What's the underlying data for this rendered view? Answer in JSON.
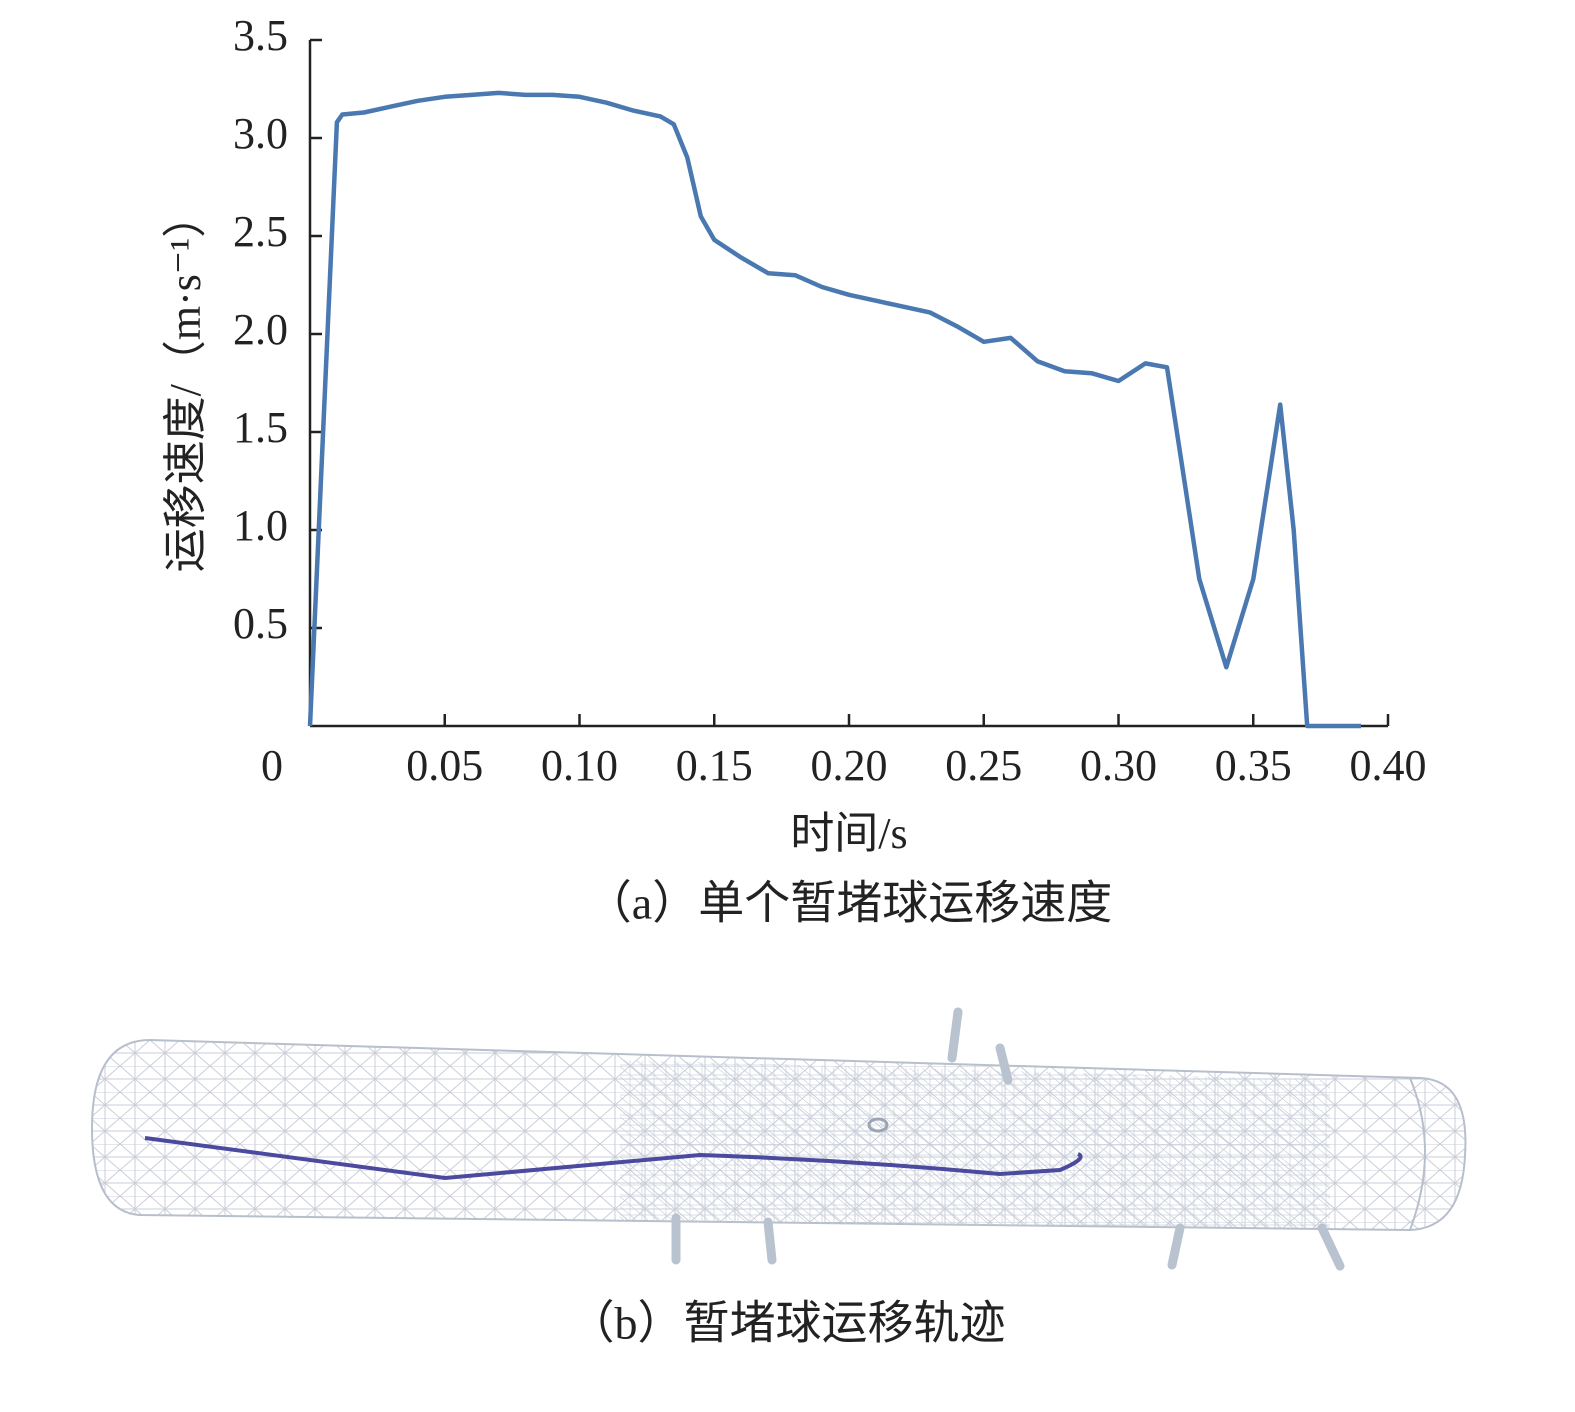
{
  "chart_data": {
    "type": "line",
    "y_label": "运移速度/（m·s⁻¹）",
    "x_label": "时间/s",
    "x": [
      0,
      0.01,
      0.012,
      0.02,
      0.03,
      0.04,
      0.05,
      0.06,
      0.07,
      0.08,
      0.09,
      0.1,
      0.11,
      0.12,
      0.13,
      0.135,
      0.14,
      0.145,
      0.15,
      0.16,
      0.17,
      0.18,
      0.19,
      0.2,
      0.21,
      0.22,
      0.23,
      0.24,
      0.25,
      0.26,
      0.27,
      0.28,
      0.29,
      0.3,
      0.31,
      0.318,
      0.325,
      0.33,
      0.34,
      0.35,
      0.36,
      0.365,
      0.37,
      0.38,
      0.39
    ],
    "values": [
      0,
      3.08,
      3.12,
      3.13,
      3.16,
      3.19,
      3.21,
      3.22,
      3.23,
      3.22,
      3.22,
      3.21,
      3.18,
      3.14,
      3.11,
      3.07,
      2.9,
      2.6,
      2.48,
      2.39,
      2.31,
      2.3,
      2.24,
      2.2,
      2.17,
      2.14,
      2.11,
      2.04,
      1.96,
      1.98,
      1.86,
      1.81,
      1.8,
      1.76,
      1.85,
      1.83,
      1.2,
      0.75,
      0.3,
      0.75,
      1.64,
      1.0,
      0,
      0,
      0
    ],
    "color": "#4a78b0",
    "xlim": [
      0,
      0.4
    ],
    "xticks": [
      0,
      0.05,
      {
        "value": 0.1,
        "label": "0.10"
      },
      0.15,
      {
        "value": 0.2,
        "label": "0.20"
      },
      0.25,
      {
        "value": 0.3,
        "label": "0.30"
      },
      0.35,
      {
        "value": 0.4,
        "label": "0.40"
      }
    ],
    "ylim": [
      0,
      3.5
    ],
    "yticks": [
      0.5,
      {
        "value": 1,
        "label": "1.0"
      },
      1.5,
      {
        "value": 2,
        "label": "2.0"
      },
      2.5,
      {
        "value": 3,
        "label": "3.0"
      },
      3.5
    ]
  },
  "captions": [
    "（a）单个暂堵球运移速度",
    "（b）暂堵球运移轨迹"
  ]
}
